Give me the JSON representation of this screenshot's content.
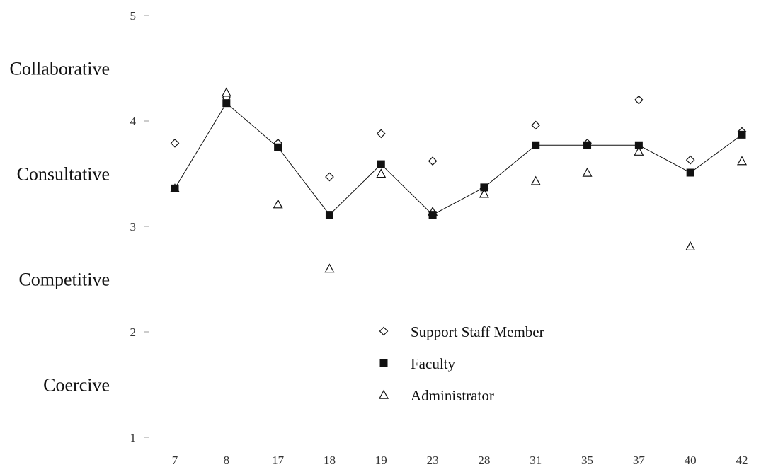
{
  "chart_data": {
    "type": "scatter",
    "y_ticks": [
      1,
      2,
      3,
      4,
      5
    ],
    "y_category_labels": [
      {
        "label": "Collaborative",
        "y": 4.5
      },
      {
        "label": "Consultative",
        "y": 3.5
      },
      {
        "label": "Competitive",
        "y": 2.5
      },
      {
        "label": "Coercive",
        "y": 1.5
      }
    ],
    "ylim": [
      1,
      5
    ],
    "categories": [
      "7",
      "8",
      "17",
      "18",
      "19",
      "23",
      "28",
      "31",
      "35",
      "37",
      "40",
      "42"
    ],
    "grid": false,
    "legend_position": "center",
    "series": [
      {
        "name": "Support Staff Member",
        "marker": "diamond-open",
        "connected": false,
        "values": [
          3.79,
          4.22,
          3.79,
          3.47,
          3.88,
          3.62,
          3.36,
          3.96,
          3.79,
          4.2,
          3.63,
          3.9
        ]
      },
      {
        "name": "Faculty",
        "marker": "square-filled",
        "connected": true,
        "values": [
          3.36,
          4.17,
          3.75,
          3.11,
          3.59,
          3.11,
          3.37,
          3.77,
          3.77,
          3.77,
          3.51,
          3.87
        ]
      },
      {
        "name": "Administrator",
        "marker": "triangle-open",
        "connected": false,
        "values": [
          3.36,
          4.27,
          3.21,
          2.6,
          3.5,
          3.14,
          3.31,
          3.43,
          3.51,
          3.71,
          2.81,
          3.62
        ]
      }
    ]
  },
  "colors": {
    "ink": "#111111",
    "background": "#ffffff"
  }
}
